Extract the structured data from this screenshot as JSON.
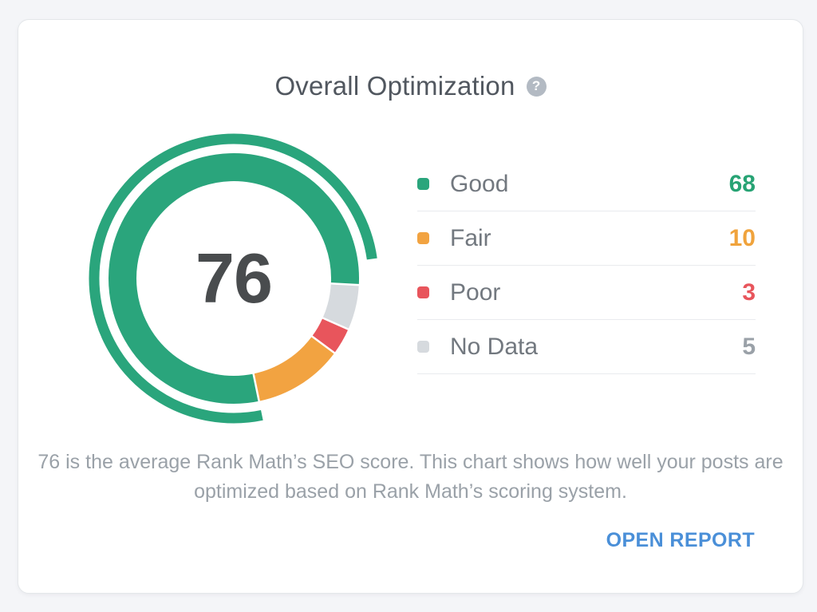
{
  "card": {
    "title": "Overall Optimization",
    "help_glyph": "?",
    "description": "76 is the average Rank Math’s SEO score. This chart shows how well your posts are optimized based on Rank Math’s scoring system.",
    "open_report_label": "OPEN REPORT"
  },
  "chart_data": {
    "type": "pie",
    "subtype": "donut",
    "title": "Overall Optimization",
    "center_score": "76",
    "categories": [
      "Good",
      "Fair",
      "Poor",
      "No Data"
    ],
    "values": [
      68,
      10,
      3,
      5
    ],
    "segments": [
      {
        "label": "Good",
        "value": 68,
        "color": "#2aa57c",
        "value_color": "#27a374"
      },
      {
        "label": "Fair",
        "value": 10,
        "color": "#f2a341",
        "value_color": "#f0a33c"
      },
      {
        "label": "Poor",
        "value": 3,
        "color": "#e8555c",
        "value_color": "#e8555c"
      },
      {
        "label": "No Data",
        "value": 5,
        "color": "#d6dade",
        "value_color": "#9aa1a8"
      }
    ],
    "outer_arc": {
      "represents": "score_of_100",
      "value": 76,
      "color": "#2aa57c"
    },
    "layout": {
      "legend_position": "right",
      "segment_order_clockwise": [
        "No Data",
        "Poor",
        "Fair",
        "Good"
      ],
      "start_angle_deg_from_top": 93,
      "ring_mid_radius": 139.5,
      "ring_thickness": 35,
      "outer_arc_mid_radius": 175,
      "outer_arc_thickness": 13
    }
  }
}
